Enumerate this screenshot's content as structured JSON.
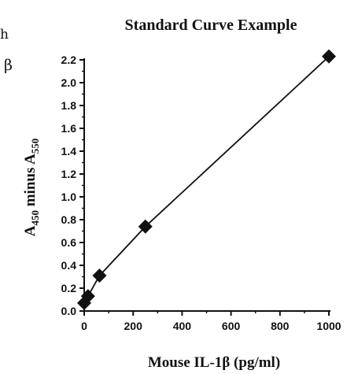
{
  "fragments": {
    "left_top": "h",
    "left_mid": "β"
  },
  "chart_data": {
    "type": "scatter",
    "title": "Standard Curve Example",
    "xlabel": "Mouse IL-1β  (pg/ml)",
    "ylabel_main": "A",
    "ylabel_sub1": "450",
    "ylabel_mid": " minus A",
    "ylabel_sub2": "550",
    "xlim": [
      0,
      1000
    ],
    "ylim": [
      0,
      2.2
    ],
    "x_ticks": [
      0,
      200,
      400,
      600,
      800,
      1000
    ],
    "y_ticks": [
      0.0,
      0.2,
      0.4,
      0.6,
      0.8,
      1.0,
      1.2,
      1.4,
      1.6,
      1.8,
      2.0,
      2.2
    ],
    "y_tick_labels": [
      "0.0",
      "0.2",
      "0.4",
      "0.6",
      "0.8",
      "1.0",
      "1.2",
      "1.4",
      "1.6",
      "1.8",
      "2.0",
      "2.2"
    ],
    "grid": false,
    "series": [
      {
        "marker": "diamond",
        "color": "#111111",
        "x": [
          0,
          15.6,
          62.5,
          250,
          1000
        ],
        "y": [
          0.07,
          0.13,
          0.31,
          0.74,
          2.23
        ]
      }
    ]
  }
}
